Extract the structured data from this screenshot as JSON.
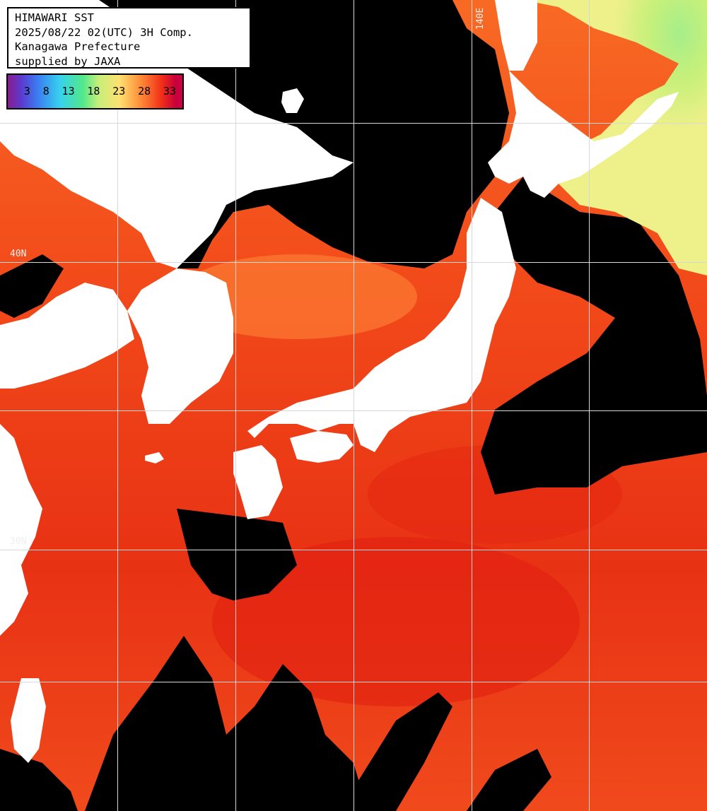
{
  "header": {
    "line1": "HIMAWARI SST",
    "line2": "2025/08/22 02(UTC) 3H Comp.",
    "line3": "Kanagawa Prefecture",
    "line4": "supplied by JAXA"
  },
  "legend": {
    "ticks": [
      "3",
      "8",
      "13",
      "18",
      "23",
      "28",
      "33"
    ]
  },
  "grid": {
    "lon_label": "140E",
    "lat_label_upper": "40N",
    "lat_label_lower": "30N"
  },
  "colors": {
    "land": "#ffffff",
    "cloud_no_data": "#000000",
    "warm_sea": "#f04818",
    "hot_sea": "#e02010",
    "cool_sea": "#c9f07a",
    "mild_sea": "#ff8c38",
    "gridline": "#d8d8d8"
  }
}
